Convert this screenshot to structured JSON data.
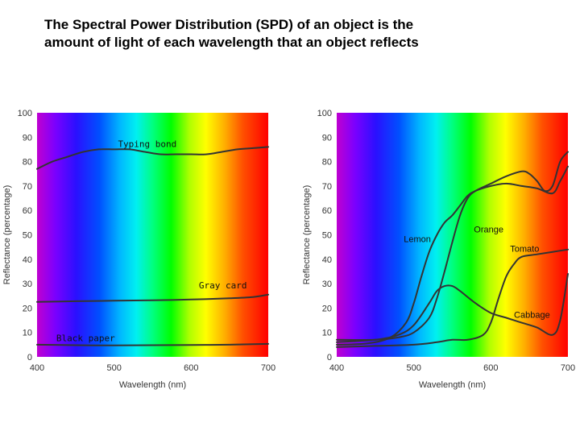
{
  "caption": {
    "line1": "The Spectral Power Distribution (SPD) of an object is the",
    "line2": "amount of light of each wavelength that an object reflects"
  },
  "chart_data": [
    {
      "type": "line",
      "title": "",
      "xlabel": "Wavelength (nm)",
      "ylabel": "Reflectance (percentage)",
      "xlim": [
        400,
        700
      ],
      "ylim": [
        0,
        100
      ],
      "xticks": [
        400,
        500,
        600,
        700
      ],
      "yticks": [
        0,
        10,
        20,
        30,
        40,
        50,
        60,
        70,
        80,
        90,
        100
      ],
      "background": "visible spectrum gradient",
      "grid": false,
      "label_font": "mono",
      "series": [
        {
          "name": "Typing bond",
          "x": [
            400,
            420,
            440,
            460,
            480,
            500,
            520,
            540,
            560,
            580,
            600,
            620,
            640,
            660,
            680,
            700
          ],
          "y": [
            77,
            80,
            82,
            84,
            85,
            85,
            85,
            84,
            83,
            83,
            83,
            83,
            84,
            85,
            85.5,
            86
          ]
        },
        {
          "name": "Gray card",
          "x": [
            400,
            450,
            500,
            550,
            600,
            650,
            680,
            700
          ],
          "y": [
            22.5,
            22.8,
            23,
            23.2,
            23.5,
            24,
            24.5,
            25.5
          ]
        },
        {
          "name": "Black paper",
          "x": [
            400,
            450,
            500,
            550,
            600,
            650,
            700
          ],
          "y": [
            5,
            4.8,
            4.7,
            4.8,
            4.9,
            5,
            5.3
          ]
        }
      ],
      "annotations": [
        {
          "text": "Typing bond",
          "x": 505,
          "y": 86
        },
        {
          "text": "Gray card",
          "x": 610,
          "y": 28
        },
        {
          "text": "Black paper",
          "x": 425,
          "y": 6.5
        }
      ]
    },
    {
      "type": "line",
      "title": "",
      "xlabel": "Wavelength (nm)",
      "ylabel": "Reflectance (percentage)",
      "xlim": [
        400,
        700
      ],
      "ylim": [
        0,
        100
      ],
      "xticks": [
        400,
        500,
        600,
        700
      ],
      "yticks": [
        0,
        10,
        20,
        30,
        40,
        50,
        60,
        70,
        80,
        90,
        100
      ],
      "background": "visible spectrum gradient",
      "grid": false,
      "label_font": "sans",
      "series": [
        {
          "name": "Lemon",
          "x": [
            400,
            440,
            470,
            490,
            500,
            510,
            520,
            530,
            540,
            550,
            560,
            570,
            580,
            600,
            620,
            640,
            660,
            680,
            690,
            700
          ],
          "y": [
            5,
            5.5,
            8,
            14,
            22,
            33,
            43,
            50,
            55,
            58,
            62,
            66,
            68,
            70,
            71,
            70,
            69,
            67,
            72,
            78
          ]
        },
        {
          "name": "Orange",
          "x": [
            400,
            450,
            480,
            500,
            520,
            530,
            540,
            550,
            560,
            570,
            580,
            600,
            620,
            640,
            650,
            660,
            670,
            680,
            690,
            700
          ],
          "y": [
            7,
            7,
            8,
            10,
            16,
            24,
            35,
            47,
            58,
            65,
            68,
            71,
            74,
            76,
            75,
            72,
            68,
            70,
            80,
            84
          ]
        },
        {
          "name": "Tomato",
          "x": [
            400,
            450,
            500,
            530,
            550,
            570,
            590,
            600,
            610,
            620,
            630,
            640,
            660,
            680,
            700
          ],
          "y": [
            4,
            4.5,
            5,
            6,
            7,
            7,
            9,
            14,
            24,
            33,
            38,
            41,
            42,
            43,
            44
          ]
        },
        {
          "name": "Cabbage",
          "x": [
            400,
            450,
            480,
            500,
            520,
            530,
            540,
            550,
            560,
            580,
            600,
            620,
            640,
            660,
            680,
            690,
            700
          ],
          "y": [
            6,
            7,
            9,
            13,
            22,
            27,
            29,
            29,
            27,
            22,
            18,
            16,
            14,
            12,
            9,
            15,
            34
          ]
        }
      ],
      "annotations": [
        {
          "text": "Lemon",
          "x": 487,
          "y": 47
        },
        {
          "text": "Orange",
          "x": 578,
          "y": 51
        },
        {
          "text": "Tomato",
          "x": 625,
          "y": 43
        },
        {
          "text": "Cabbage",
          "x": 630,
          "y": 16
        }
      ]
    }
  ]
}
